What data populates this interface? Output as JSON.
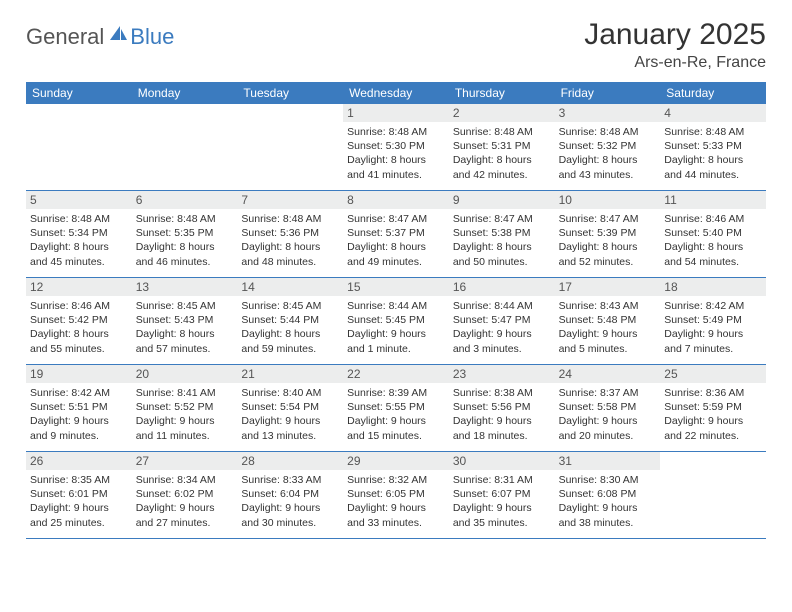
{
  "brand": {
    "part1": "General",
    "part2": "Blue"
  },
  "title": "January 2025",
  "location": "Ars-en-Re, France",
  "colors": {
    "header_bg": "#3b7bbf",
    "header_text": "#ffffff",
    "daynum_bg": "#eceded",
    "text": "#333333",
    "rule": "#3b7bbf"
  },
  "fonts": {
    "title_size": 30,
    "location_size": 16,
    "dow_size": 12,
    "daynum_size": 12,
    "body_size": 10.5
  },
  "days_of_week": [
    "Sunday",
    "Monday",
    "Tuesday",
    "Wednesday",
    "Thursday",
    "Friday",
    "Saturday"
  ],
  "weeks": [
    [
      {
        "n": "",
        "empty": true
      },
      {
        "n": "",
        "empty": true
      },
      {
        "n": "",
        "empty": true
      },
      {
        "n": "1",
        "sunrise": "Sunrise: 8:48 AM",
        "sunset": "Sunset: 5:30 PM",
        "d1": "Daylight: 8 hours",
        "d2": "and 41 minutes."
      },
      {
        "n": "2",
        "sunrise": "Sunrise: 8:48 AM",
        "sunset": "Sunset: 5:31 PM",
        "d1": "Daylight: 8 hours",
        "d2": "and 42 minutes."
      },
      {
        "n": "3",
        "sunrise": "Sunrise: 8:48 AM",
        "sunset": "Sunset: 5:32 PM",
        "d1": "Daylight: 8 hours",
        "d2": "and 43 minutes."
      },
      {
        "n": "4",
        "sunrise": "Sunrise: 8:48 AM",
        "sunset": "Sunset: 5:33 PM",
        "d1": "Daylight: 8 hours",
        "d2": "and 44 minutes."
      }
    ],
    [
      {
        "n": "5",
        "sunrise": "Sunrise: 8:48 AM",
        "sunset": "Sunset: 5:34 PM",
        "d1": "Daylight: 8 hours",
        "d2": "and 45 minutes."
      },
      {
        "n": "6",
        "sunrise": "Sunrise: 8:48 AM",
        "sunset": "Sunset: 5:35 PM",
        "d1": "Daylight: 8 hours",
        "d2": "and 46 minutes."
      },
      {
        "n": "7",
        "sunrise": "Sunrise: 8:48 AM",
        "sunset": "Sunset: 5:36 PM",
        "d1": "Daylight: 8 hours",
        "d2": "and 48 minutes."
      },
      {
        "n": "8",
        "sunrise": "Sunrise: 8:47 AM",
        "sunset": "Sunset: 5:37 PM",
        "d1": "Daylight: 8 hours",
        "d2": "and 49 minutes."
      },
      {
        "n": "9",
        "sunrise": "Sunrise: 8:47 AM",
        "sunset": "Sunset: 5:38 PM",
        "d1": "Daylight: 8 hours",
        "d2": "and 50 minutes."
      },
      {
        "n": "10",
        "sunrise": "Sunrise: 8:47 AM",
        "sunset": "Sunset: 5:39 PM",
        "d1": "Daylight: 8 hours",
        "d2": "and 52 minutes."
      },
      {
        "n": "11",
        "sunrise": "Sunrise: 8:46 AM",
        "sunset": "Sunset: 5:40 PM",
        "d1": "Daylight: 8 hours",
        "d2": "and 54 minutes."
      }
    ],
    [
      {
        "n": "12",
        "sunrise": "Sunrise: 8:46 AM",
        "sunset": "Sunset: 5:42 PM",
        "d1": "Daylight: 8 hours",
        "d2": "and 55 minutes."
      },
      {
        "n": "13",
        "sunrise": "Sunrise: 8:45 AM",
        "sunset": "Sunset: 5:43 PM",
        "d1": "Daylight: 8 hours",
        "d2": "and 57 minutes."
      },
      {
        "n": "14",
        "sunrise": "Sunrise: 8:45 AM",
        "sunset": "Sunset: 5:44 PM",
        "d1": "Daylight: 8 hours",
        "d2": "and 59 minutes."
      },
      {
        "n": "15",
        "sunrise": "Sunrise: 8:44 AM",
        "sunset": "Sunset: 5:45 PM",
        "d1": "Daylight: 9 hours",
        "d2": "and 1 minute."
      },
      {
        "n": "16",
        "sunrise": "Sunrise: 8:44 AM",
        "sunset": "Sunset: 5:47 PM",
        "d1": "Daylight: 9 hours",
        "d2": "and 3 minutes."
      },
      {
        "n": "17",
        "sunrise": "Sunrise: 8:43 AM",
        "sunset": "Sunset: 5:48 PM",
        "d1": "Daylight: 9 hours",
        "d2": "and 5 minutes."
      },
      {
        "n": "18",
        "sunrise": "Sunrise: 8:42 AM",
        "sunset": "Sunset: 5:49 PM",
        "d1": "Daylight: 9 hours",
        "d2": "and 7 minutes."
      }
    ],
    [
      {
        "n": "19",
        "sunrise": "Sunrise: 8:42 AM",
        "sunset": "Sunset: 5:51 PM",
        "d1": "Daylight: 9 hours",
        "d2": "and 9 minutes."
      },
      {
        "n": "20",
        "sunrise": "Sunrise: 8:41 AM",
        "sunset": "Sunset: 5:52 PM",
        "d1": "Daylight: 9 hours",
        "d2": "and 11 minutes."
      },
      {
        "n": "21",
        "sunrise": "Sunrise: 8:40 AM",
        "sunset": "Sunset: 5:54 PM",
        "d1": "Daylight: 9 hours",
        "d2": "and 13 minutes."
      },
      {
        "n": "22",
        "sunrise": "Sunrise: 8:39 AM",
        "sunset": "Sunset: 5:55 PM",
        "d1": "Daylight: 9 hours",
        "d2": "and 15 minutes."
      },
      {
        "n": "23",
        "sunrise": "Sunrise: 8:38 AM",
        "sunset": "Sunset: 5:56 PM",
        "d1": "Daylight: 9 hours",
        "d2": "and 18 minutes."
      },
      {
        "n": "24",
        "sunrise": "Sunrise: 8:37 AM",
        "sunset": "Sunset: 5:58 PM",
        "d1": "Daylight: 9 hours",
        "d2": "and 20 minutes."
      },
      {
        "n": "25",
        "sunrise": "Sunrise: 8:36 AM",
        "sunset": "Sunset: 5:59 PM",
        "d1": "Daylight: 9 hours",
        "d2": "and 22 minutes."
      }
    ],
    [
      {
        "n": "26",
        "sunrise": "Sunrise: 8:35 AM",
        "sunset": "Sunset: 6:01 PM",
        "d1": "Daylight: 9 hours",
        "d2": "and 25 minutes."
      },
      {
        "n": "27",
        "sunrise": "Sunrise: 8:34 AM",
        "sunset": "Sunset: 6:02 PM",
        "d1": "Daylight: 9 hours",
        "d2": "and 27 minutes."
      },
      {
        "n": "28",
        "sunrise": "Sunrise: 8:33 AM",
        "sunset": "Sunset: 6:04 PM",
        "d1": "Daylight: 9 hours",
        "d2": "and 30 minutes."
      },
      {
        "n": "29",
        "sunrise": "Sunrise: 8:32 AM",
        "sunset": "Sunset: 6:05 PM",
        "d1": "Daylight: 9 hours",
        "d2": "and 33 minutes."
      },
      {
        "n": "30",
        "sunrise": "Sunrise: 8:31 AM",
        "sunset": "Sunset: 6:07 PM",
        "d1": "Daylight: 9 hours",
        "d2": "and 35 minutes."
      },
      {
        "n": "31",
        "sunrise": "Sunrise: 8:30 AM",
        "sunset": "Sunset: 6:08 PM",
        "d1": "Daylight: 9 hours",
        "d2": "and 38 minutes."
      },
      {
        "n": "",
        "empty": true
      }
    ]
  ]
}
